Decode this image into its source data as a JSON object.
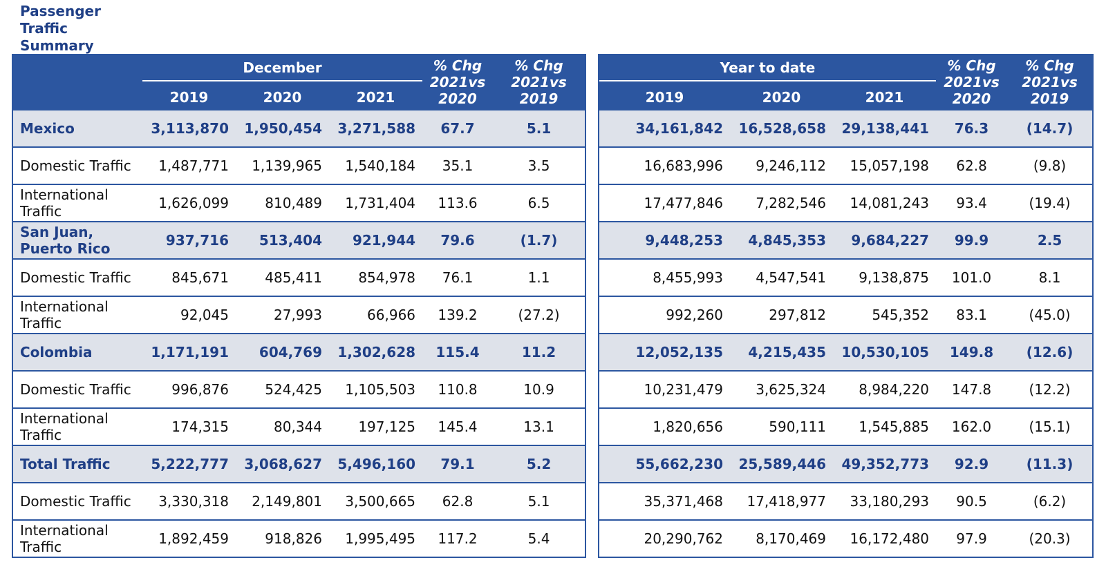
{
  "title": "Passenger Traffic Summary",
  "colors": {
    "header_bg": "#2c56a0",
    "major_row_bg": "#dee2ea",
    "major_text": "#1f3f86",
    "border": "#2c56a0"
  },
  "month_table": {
    "group_label": "December",
    "years": [
      "2019",
      "2020",
      "2021"
    ],
    "pct1": [
      "% Chg",
      "2021vs",
      "2020"
    ],
    "pct2": [
      "% Chg",
      "2021vs",
      "2019"
    ],
    "rows": [
      {
        "label": "Mexico",
        "v": [
          "3,113,870",
          "1,950,454",
          "3,271,588",
          "67.7",
          "5.1"
        ]
      },
      {
        "label": "Domestic Traffic",
        "v": [
          "1,487,771",
          "1,139,965",
          "1,540,184",
          "35.1",
          "3.5"
        ]
      },
      {
        "label": "International Traffic",
        "v": [
          "1,626,099",
          "810,489",
          "1,731,404",
          "113.6",
          "6.5"
        ]
      },
      {
        "label": "San Juan, Puerto Rico",
        "v": [
          "937,716",
          "513,404",
          "921,944",
          "79.6",
          "(1.7)"
        ]
      },
      {
        "label": "Domestic Traffic",
        "v": [
          "845,671",
          "485,411",
          "854,978",
          "76.1",
          "1.1"
        ]
      },
      {
        "label": "International Traffic",
        "v": [
          "92,045",
          "27,993",
          "66,966",
          "139.2",
          "(27.2)"
        ]
      },
      {
        "label": "Colombia",
        "v": [
          "1,171,191",
          "604,769",
          "1,302,628",
          "115.4",
          "11.2"
        ]
      },
      {
        "label": "Domestic Traffic",
        "v": [
          "996,876",
          "524,425",
          "1,105,503",
          "110.8",
          "10.9"
        ]
      },
      {
        "label": "International Traffic",
        "v": [
          "174,315",
          "80,344",
          "197,125",
          "145.4",
          "13.1"
        ]
      },
      {
        "label": "Total Traffic",
        "v": [
          "5,222,777",
          "3,068,627",
          "5,496,160",
          "79.1",
          "5.2"
        ]
      },
      {
        "label": "Domestic Traffic",
        "v": [
          "3,330,318",
          "2,149,801",
          "3,500,665",
          "62.8",
          "5.1"
        ]
      },
      {
        "label": "International Traffic",
        "v": [
          "1,892,459",
          "918,826",
          "1,995,495",
          "117.2",
          "5.4"
        ]
      }
    ]
  },
  "ytd_table": {
    "group_label": "Year to date",
    "years": [
      "2019",
      "2020",
      "2021"
    ],
    "pct1": [
      "% Chg",
      "2021vs",
      "2020"
    ],
    "pct2": [
      "% Chg",
      "2021vs",
      "2019"
    ],
    "rows": [
      {
        "v": [
          "34,161,842",
          "16,528,658",
          "29,138,441",
          "76.3",
          "(14.7)"
        ]
      },
      {
        "v": [
          "16,683,996",
          "9,246,112",
          "15,057,198",
          "62.8",
          "(9.8)"
        ]
      },
      {
        "v": [
          "17,477,846",
          "7,282,546",
          "14,081,243",
          "93.4",
          "(19.4)"
        ]
      },
      {
        "v": [
          "9,448,253",
          "4,845,353",
          "9,684,227",
          "99.9",
          "2.5"
        ]
      },
      {
        "v": [
          "8,455,993",
          "4,547,541",
          "9,138,875",
          "101.0",
          "8.1"
        ]
      },
      {
        "v": [
          "992,260",
          "297,812",
          "545,352",
          "83.1",
          "(45.0)"
        ]
      },
      {
        "v": [
          "12,052,135",
          "4,215,435",
          "10,530,105",
          "149.8",
          "(12.6)"
        ]
      },
      {
        "v": [
          "10,231,479",
          "3,625,324",
          "8,984,220",
          "147.8",
          "(12.2)"
        ]
      },
      {
        "v": [
          "1,820,656",
          "590,111",
          "1,545,885",
          "162.0",
          "(15.1)"
        ]
      },
      {
        "v": [
          "55,662,230",
          "25,589,446",
          "49,352,773",
          "92.9",
          "(11.3)"
        ]
      },
      {
        "v": [
          "35,371,468",
          "17,418,977",
          "33,180,293",
          "90.5",
          "(6.2)"
        ]
      },
      {
        "v": [
          "20,290,762",
          "8,170,469",
          "16,172,480",
          "97.9",
          "(20.3)"
        ]
      }
    ]
  }
}
